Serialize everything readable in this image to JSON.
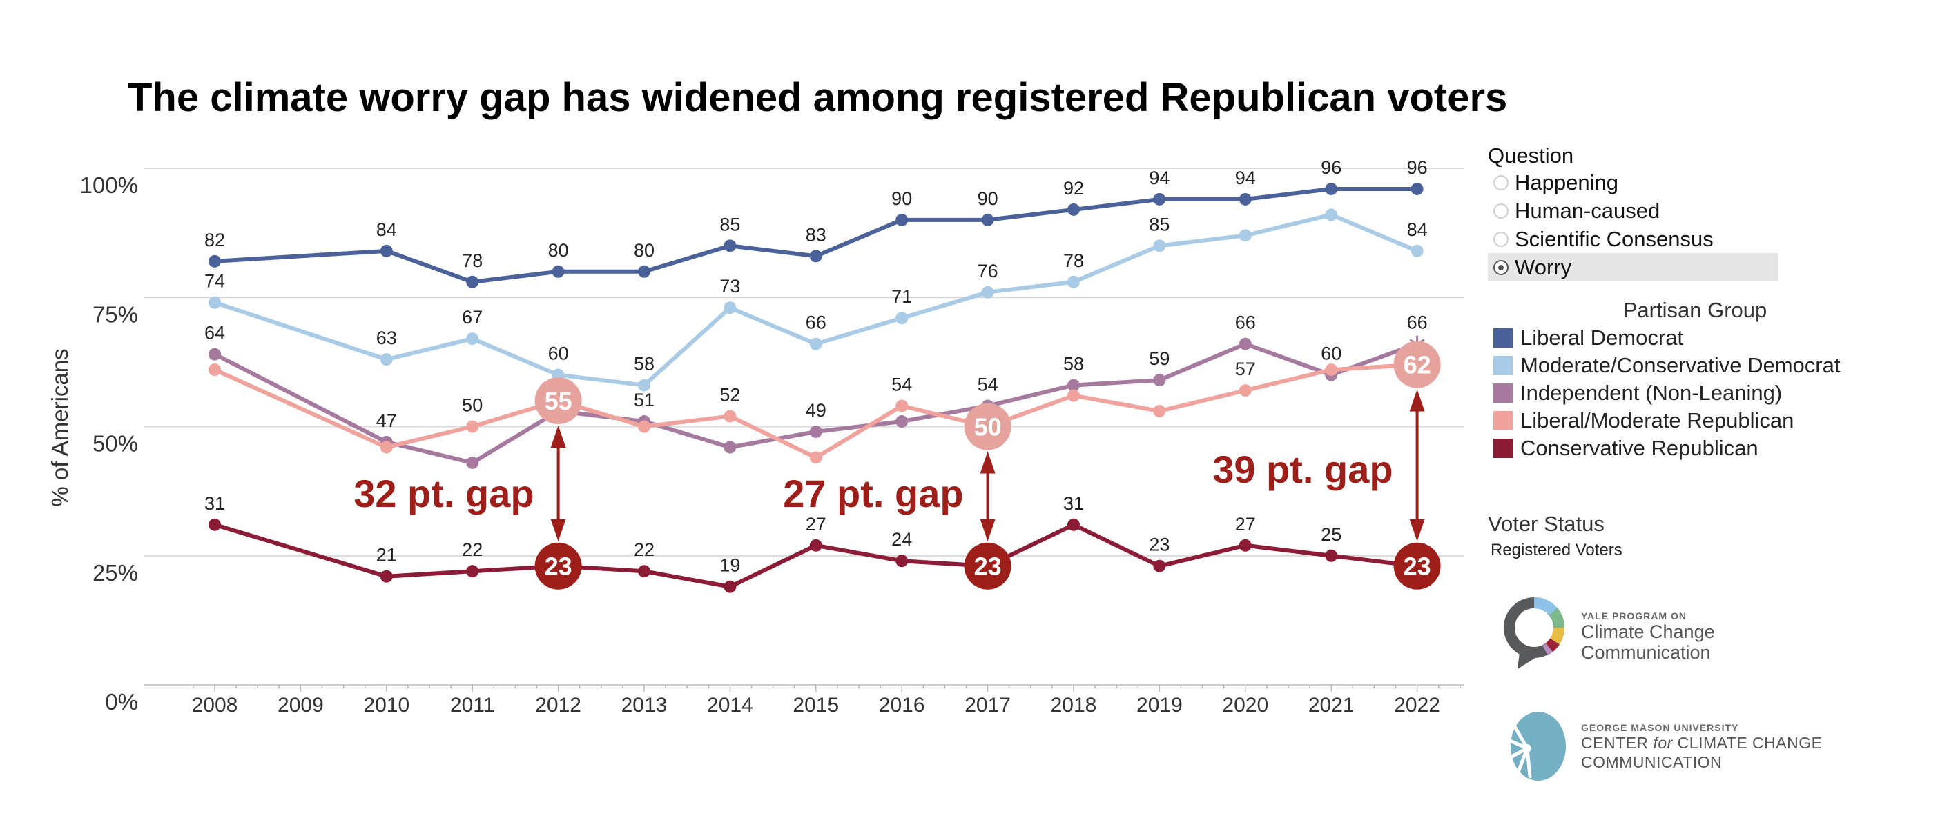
{
  "title": "The climate worry gap has widened among registered Republican voters",
  "question_filter": {
    "title": "Question",
    "options": [
      {
        "label": "Happening",
        "selected": false
      },
      {
        "label": "Human-caused",
        "selected": false
      },
      {
        "label": "Scientific Consensus",
        "selected": false
      },
      {
        "label": "Worry",
        "selected": true
      }
    ]
  },
  "legend": {
    "title": "Partisan Group",
    "items": [
      {
        "label": "Liberal Democrat",
        "color": "#4a6199"
      },
      {
        "label": "Moderate/Conservative Democrat",
        "color": "#a9cbe6"
      },
      {
        "label": "Independent (Non-Leaning)",
        "color": "#a67a9f"
      },
      {
        "label": "Liberal/Moderate Republican",
        "color": "#f0a39d"
      },
      {
        "label": "Conservative Republican",
        "color": "#8c1b35"
      }
    ]
  },
  "voter_status": {
    "title": "Voter Status",
    "value": "Registered Voters"
  },
  "logos": {
    "yale": {
      "line1": "YALE PROGRAM ON",
      "line2": "Climate Change",
      "line3": "Communication"
    },
    "gmu": {
      "line1": "GEORGE MASON UNIVERSITY",
      "line2_a": "CENTER ",
      "line2_b": "for",
      "line2_c": " CLIMATE CHANGE",
      "line3": "COMMUNICATION"
    }
  },
  "annotation_color": "#9e1f1a",
  "chart_data": {
    "type": "line",
    "title": "The climate worry gap has widened among registered Republican voters",
    "xlabel": "",
    "ylabel": "% of Americans",
    "x_ticks": [
      "2008",
      "2009",
      "2010",
      "2011",
      "2012",
      "2013",
      "2014",
      "2015",
      "2016",
      "2017",
      "2018",
      "2019",
      "2020",
      "2021",
      "2022"
    ],
    "y_ticks": [
      "0%",
      "25%",
      "50%",
      "75%",
      "100%"
    ],
    "y_tick_values": [
      0,
      25,
      50,
      75,
      100
    ],
    "ylim": [
      0,
      100
    ],
    "xlim": [
      2008,
      2022
    ],
    "grid": true,
    "legend_position": "right",
    "x": [
      2008,
      2010,
      2011,
      2012,
      2013,
      2014,
      2015,
      2016,
      2017,
      2018,
      2019,
      2020,
      2021,
      2022
    ],
    "series": [
      {
        "name": "Liberal Democrat",
        "color": "#4a6199",
        "values": [
          82,
          84,
          78,
          80,
          80,
          85,
          83,
          90,
          90,
          92,
          94,
          94,
          96,
          96
        ],
        "labels": [
          "82",
          "84",
          "78",
          "80",
          "80",
          "85",
          "83",
          "90",
          "90",
          "92",
          "94",
          "94",
          "96",
          "96"
        ]
      },
      {
        "name": "Moderate/Conservative Democrat",
        "color": "#a9cbe6",
        "values": [
          74,
          63,
          67,
          60,
          58,
          73,
          66,
          71,
          76,
          78,
          85,
          87,
          91,
          84
        ],
        "labels": [
          "74",
          "63",
          "67",
          "60",
          "58",
          "73",
          "66",
          "71",
          "76",
          "78",
          "85",
          "",
          "",
          "84"
        ]
      },
      {
        "name": "Independent (Non-Leaning)",
        "color": "#a67a9f",
        "values": [
          64,
          47,
          43,
          53,
          51,
          46,
          49,
          51,
          54,
          58,
          59,
          66,
          60,
          66
        ],
        "labels": [
          "64",
          "47",
          "",
          "",
          "51",
          "",
          "49",
          "",
          "54",
          "58",
          "59",
          "66",
          "60",
          "66"
        ]
      },
      {
        "name": "Liberal/Moderate Republican",
        "color": "#f0a39d",
        "values": [
          61,
          46,
          50,
          55,
          50,
          52,
          44,
          54,
          50,
          56,
          53,
          57,
          61,
          62
        ],
        "labels": [
          "",
          "",
          "50",
          "",
          "",
          "52",
          "",
          "54",
          "",
          "",
          "",
          "57",
          "",
          ""
        ]
      },
      {
        "name": "Conservative Republican",
        "color": "#8c1b35",
        "values": [
          31,
          21,
          22,
          23,
          22,
          19,
          27,
          24,
          23,
          31,
          23,
          27,
          25,
          23
        ],
        "labels": [
          "31",
          "21",
          "22",
          "",
          "22",
          "19",
          "27",
          "24",
          "",
          "31",
          "23",
          "27",
          "25",
          ""
        ]
      }
    ],
    "annotations": [
      {
        "year": 2012,
        "upper_value": 55,
        "lower_value": 23,
        "upper_label": "55",
        "lower_label": "23",
        "gap_label": "32 pt. gap",
        "gap_text_side": "left"
      },
      {
        "year": 2017,
        "upper_value": 50,
        "lower_value": 23,
        "upper_label": "50",
        "lower_label": "23",
        "gap_label": "27 pt. gap",
        "gap_text_side": "left"
      },
      {
        "year": 2022,
        "upper_value": 62,
        "lower_value": 23,
        "upper_label": "62",
        "lower_label": "23",
        "gap_label": "39 pt. gap",
        "gap_text_side": "left"
      }
    ],
    "callout_upper_color": "#e6a39e",
    "callout_lower_color": "#9e1f1a"
  }
}
